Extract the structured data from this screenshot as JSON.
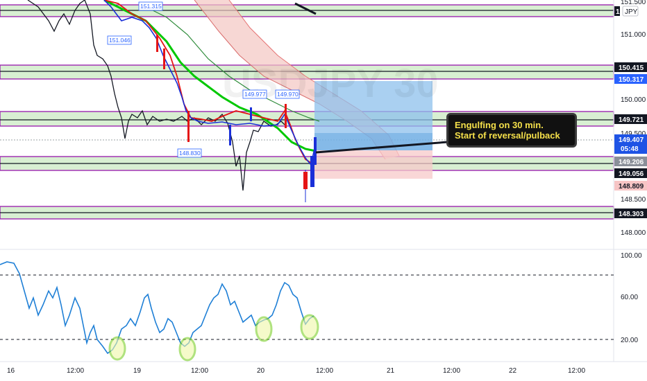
{
  "window": {
    "currency_label": "JPY",
    "badge_partial": "1"
  },
  "price_axis": {
    "ticks": [
      "151.500",
      "151.000",
      "150.000",
      "149.500",
      "148.500",
      "148.000"
    ],
    "labels": [
      {
        "text": "150.415",
        "bg": "#131722",
        "fg": "#ffffff"
      },
      {
        "text": "150.317",
        "bg": "#2962ff",
        "fg": "#ffffff"
      },
      {
        "text": "149.721",
        "bg": "#131722",
        "fg": "#ffffff"
      },
      {
        "text": "149.407",
        "bg": "#1e53e5",
        "fg": "#ffffff"
      },
      {
        "text": "05:48",
        "bg": "#1e53e5",
        "fg": "#ffffff"
      },
      {
        "text": "149.206",
        "bg": "#8a8f99",
        "fg": "#ffffff"
      },
      {
        "text": "149.056",
        "bg": "#131722",
        "fg": "#ffffff"
      },
      {
        "text": "148.809",
        "bg": "#f7c5c5",
        "fg": "#131722"
      },
      {
        "text": "148.303",
        "bg": "#131722",
        "fg": "#ffffff"
      }
    ]
  },
  "rsi_axis": {
    "ticks": [
      "100.00",
      "60.00",
      "20.00"
    ]
  },
  "time_axis": {
    "ticks": [
      "16",
      "12:00",
      "19",
      "12:00",
      "20",
      "12:00",
      "21",
      "12:00",
      "22",
      "12:00"
    ]
  },
  "chart_labels": [
    "151.315",
    "151.046",
    "149.977",
    "149.970",
    "148.830"
  ],
  "annotation": {
    "line1": "Engulfing on 30 min.",
    "line2": "Start of reversal/pulback"
  },
  "colors": {
    "zone_fill": "#d8efd2",
    "zone_border": "#9c27b0",
    "ema_fast": "#1a2fd8",
    "ema_red": "#e51515",
    "ema_green": "#00c800",
    "ema_dark": "#2e8b3a",
    "rsi_line": "#1e7fd6",
    "rsi_circle": "#7bd02a",
    "target_box": "#8ec0ec",
    "stop_box": "#f7caca"
  }
}
